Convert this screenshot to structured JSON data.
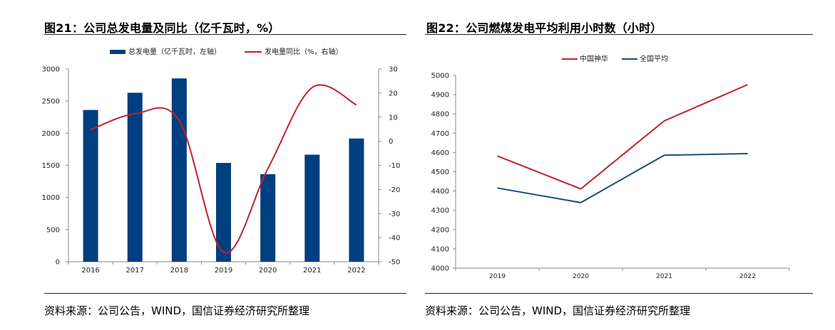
{
  "figures": [
    {
      "title": "图21：公司总发电量及同比（亿千瓦时，%）",
      "source": "资料来源：公司公告，WIND，国信证券经济研究所整理"
    },
    {
      "title": "图22：公司燃煤发电平均利用小时数（小时）",
      "source": "资料来源：公司公告，WIND，国信证券经济研究所整理"
    }
  ],
  "chart_data": [
    {
      "type": "bar",
      "categories": [
        "2016",
        "2017",
        "2018",
        "2019",
        "2020",
        "2021",
        "2022"
      ],
      "series": [
        {
          "name": "总发电量（亿千瓦时，左轴）",
          "type": "bar",
          "axis": "left",
          "color": "#003f7f",
          "values": [
            2362,
            2630,
            2853,
            1538,
            1362,
            1666,
            1918
          ]
        },
        {
          "name": "发电量同比（%，右轴）",
          "type": "line",
          "axis": "right",
          "color": "#c0222c",
          "values": [
            4.8,
            11.4,
            8.5,
            -46.1,
            -11.4,
            22.3,
            15.1
          ]
        }
      ],
      "y_left": {
        "min": 0,
        "max": 3000,
        "ticks": [
          "0",
          "500",
          "1000",
          "1500",
          "2000",
          "2500",
          "3000"
        ]
      },
      "y_right": {
        "min": -50,
        "max": 30,
        "ticks": [
          "-50",
          "-40",
          "-30",
          "-20",
          "-10",
          "0",
          "10",
          "20",
          "30"
        ]
      },
      "legend_position": "top",
      "grid": false,
      "smooth_line": true
    },
    {
      "type": "line",
      "categories": [
        "2019",
        "2020",
        "2021",
        "2022"
      ],
      "series": [
        {
          "name": "中国神华",
          "color": "#c0222c",
          "values": [
            4582,
            4411,
            4764,
            4952
          ]
        },
        {
          "name": "全国平均",
          "color": "#1f4e79",
          "values": [
            4416,
            4340,
            4586,
            4594
          ]
        }
      ],
      "ylim": [
        4000,
        5000
      ],
      "y_ticks": [
        "4000",
        "4100",
        "4200",
        "4300",
        "4400",
        "4500",
        "4600",
        "4700",
        "4800",
        "4900",
        "5000"
      ],
      "legend_position": "top",
      "grid": false
    }
  ]
}
